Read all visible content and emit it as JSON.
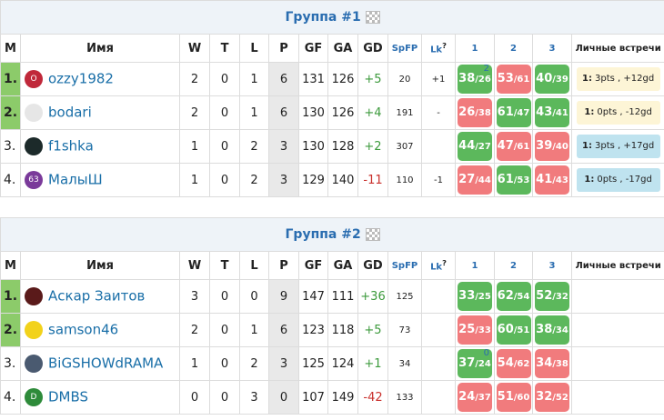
{
  "score_sep": "/",
  "lk_note": "?",
  "groups": [
    {
      "title": "Группа #1",
      "columns": [
        "M",
        "Имя",
        "W",
        "T",
        "L",
        "P",
        "GF",
        "GA",
        "GD",
        "SpFP",
        "Lk",
        "1",
        "2",
        "3",
        "Личные встречи"
      ],
      "rows": [
        {
          "rank": "1.",
          "promoted": true,
          "avatar": "O",
          "avatar_color": "#c0283a",
          "name": "ozzy1982",
          "stats": [
            "2",
            "0",
            "1",
            "6",
            "131",
            "126",
            "+5",
            "20",
            "+1"
          ],
          "results": [
            {
              "for": 38,
              "against": 26,
              "note": "2",
              "result": "win"
            },
            {
              "for": 53,
              "against": 61,
              "result": "loss"
            },
            {
              "for": 40,
              "against": 39,
              "result": "win"
            }
          ],
          "h2h": {
            "label": "1:",
            "text": "3pts , +12gd",
            "color": "#fdf5d6"
          }
        },
        {
          "rank": "2.",
          "promoted": true,
          "avatar": null,
          "avatar_color": "#e6e6e6",
          "name": "bodari",
          "stats": [
            "2",
            "0",
            "1",
            "6",
            "130",
            "126",
            "+4",
            "191",
            "-"
          ],
          "results": [
            {
              "for": 26,
              "against": 38,
              "result": "loss"
            },
            {
              "for": 61,
              "against": 47,
              "result": "win"
            },
            {
              "for": 43,
              "against": 41,
              "result": "win"
            }
          ],
          "h2h": {
            "label": "1:",
            "text": "0pts , -12gd",
            "color": "#fdf5d6"
          }
        },
        {
          "rank": "3.",
          "promoted": false,
          "avatar": null,
          "avatar_color": "#1c2a2a",
          "name": "f1shka",
          "stats": [
            "1",
            "0",
            "2",
            "3",
            "130",
            "128",
            "+2",
            "307",
            null
          ],
          "results": [
            {
              "for": 44,
              "against": 27,
              "result": "win"
            },
            {
              "for": 47,
              "against": 61,
              "result": "loss"
            },
            {
              "for": 39,
              "against": 40,
              "result": "loss"
            }
          ],
          "h2h": {
            "label": "1:",
            "text": "3pts , +17gd",
            "color": "#bfe3ef"
          }
        },
        {
          "rank": "4.",
          "promoted": false,
          "avatar": "63",
          "avatar_color": "#7a3a9a",
          "name": "МалыШ",
          "stats": [
            "1",
            "0",
            "2",
            "3",
            "129",
            "140",
            "-11",
            "110",
            "-1"
          ],
          "results": [
            {
              "for": 27,
              "against": 44,
              "result": "loss"
            },
            {
              "for": 61,
              "against": 53,
              "result": "win"
            },
            {
              "for": 41,
              "against": 43,
              "result": "loss"
            }
          ],
          "h2h": {
            "label": "1:",
            "text": "0pts , -17gd",
            "color": "#bfe3ef"
          }
        }
      ]
    },
    {
      "title": "Группа #2",
      "columns": [
        "M",
        "Имя",
        "W",
        "T",
        "L",
        "P",
        "GF",
        "GA",
        "GD",
        "SpFP",
        "Lk",
        "1",
        "2",
        "3",
        "Личные встречи"
      ],
      "rows": [
        {
          "rank": "1.",
          "promoted": true,
          "avatar": null,
          "avatar_color": "#5a1a1a",
          "name": "Аскар Заитов",
          "stats": [
            "3",
            "0",
            "0",
            "9",
            "147",
            "111",
            "+36",
            "125",
            null
          ],
          "results": [
            {
              "for": 33,
              "against": 25,
              "result": "win"
            },
            {
              "for": 62,
              "against": 54,
              "result": "win"
            },
            {
              "for": 52,
              "against": 32,
              "result": "win"
            }
          ],
          "h2h": null
        },
        {
          "rank": "2.",
          "promoted": true,
          "avatar": null,
          "avatar_color": "#f2d21b",
          "name": "samson46",
          "stats": [
            "2",
            "0",
            "1",
            "6",
            "123",
            "118",
            "+5",
            "73",
            null
          ],
          "results": [
            {
              "for": 25,
              "against": 33,
              "result": "loss"
            },
            {
              "for": 60,
              "against": 51,
              "result": "win"
            },
            {
              "for": 38,
              "against": 34,
              "result": "win"
            }
          ],
          "h2h": null
        },
        {
          "rank": "3.",
          "promoted": false,
          "avatar": null,
          "avatar_color": "#4a5a70",
          "name": "BiGSHOWdRAMA",
          "stats": [
            "1",
            "0",
            "2",
            "3",
            "125",
            "124",
            "+1",
            "34",
            null
          ],
          "results": [
            {
              "for": 37,
              "against": 24,
              "note": "0",
              "result": "win"
            },
            {
              "for": 54,
              "against": 62,
              "result": "loss"
            },
            {
              "for": 34,
              "against": 38,
              "result": "loss"
            }
          ],
          "h2h": null
        },
        {
          "rank": "4.",
          "promoted": false,
          "avatar": "D",
          "avatar_color": "#2e8b3a",
          "name": "DMBS",
          "stats": [
            "0",
            "0",
            "3",
            "0",
            "107",
            "149",
            "-42",
            "133",
            null
          ],
          "results": [
            {
              "for": 24,
              "against": 37,
              "result": "loss"
            },
            {
              "for": 51,
              "against": 60,
              "result": "loss"
            },
            {
              "for": 32,
              "against": 52,
              "result": "loss"
            }
          ],
          "h2h": null
        }
      ]
    }
  ]
}
